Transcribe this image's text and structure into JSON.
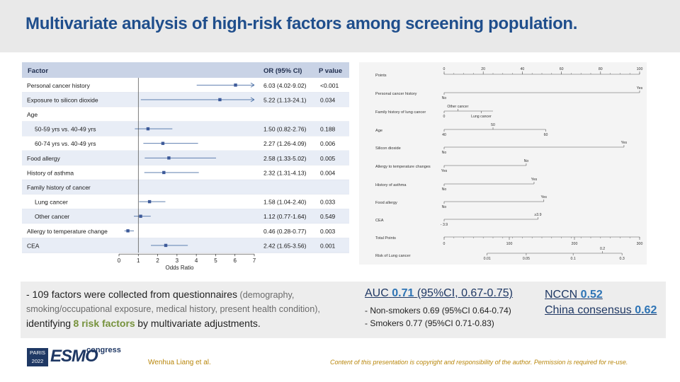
{
  "title": "Multivariate analysis of high-risk factors among screening population.",
  "colors": {
    "title": "#1f4e8c",
    "accent_green": "#76923c",
    "accent_blue": "#2e74b5",
    "footer_gold": "#b8860b",
    "ci_line": "#4a6fa5"
  },
  "chart_data": [
    {
      "type": "forest",
      "title": "",
      "xlabel": "Odds Ratio",
      "xlim": [
        0,
        7
      ],
      "xticks": [
        "0",
        "1",
        "2",
        "3",
        "4",
        "5",
        "6",
        "7"
      ],
      "reference_line": 1,
      "columns": {
        "factor": "Factor",
        "or": "OR (95% CI)",
        "p": "P value"
      },
      "rows": [
        {
          "label": "Personal cancer history",
          "or": 6.03,
          "lo": 4.02,
          "hi": 9.02,
          "or_text": "6.03 (4.02-9.02)",
          "p": "<0.001",
          "indent": false,
          "arrow": true
        },
        {
          "label": "Exposure to silicon dioxide",
          "or": 5.22,
          "lo": 1.13,
          "hi": 24.1,
          "or_text": "5.22 (1.13-24.1)",
          "p": "0.034",
          "indent": false,
          "arrow": true
        },
        {
          "label": "Age",
          "header": true
        },
        {
          "label": "50-59 yrs vs. 40-49 yrs",
          "or": 1.5,
          "lo": 0.82,
          "hi": 2.76,
          "or_text": "1.50 (0.82-2.76)",
          "p": "0.188",
          "indent": true
        },
        {
          "label": "60-74 yrs vs. 40-49 yrs",
          "or": 2.27,
          "lo": 1.26,
          "hi": 4.09,
          "or_text": "2.27 (1.26-4.09)",
          "p": "0.006",
          "indent": true
        },
        {
          "label": "Food allergy",
          "or": 2.58,
          "lo": 1.33,
          "hi": 5.02,
          "or_text": "2.58 (1.33-5.02)",
          "p": "0.005",
          "indent": false
        },
        {
          "label": "History of asthma",
          "or": 2.32,
          "lo": 1.31,
          "hi": 4.13,
          "or_text": "2.32 (1.31-4.13)",
          "p": "0.004",
          "indent": false
        },
        {
          "label": "Family history of cancer",
          "header": true
        },
        {
          "label": "Lung cancer",
          "or": 1.58,
          "lo": 1.04,
          "hi": 2.4,
          "or_text": "1.58 (1.04-2.40)",
          "p": "0.033",
          "indent": true
        },
        {
          "label": "Other cancer",
          "or": 1.12,
          "lo": 0.77,
          "hi": 1.64,
          "or_text": "1.12 (0.77-1.64)",
          "p": "0.549",
          "indent": true
        },
        {
          "label": "Allergy to temperature change",
          "or": 0.46,
          "lo": 0.28,
          "hi": 0.77,
          "or_text": "0.46 (0.28-0.77)",
          "p": "0.003",
          "indent": false
        },
        {
          "label": "CEA",
          "or": 2.42,
          "lo": 1.65,
          "hi": 3.56,
          "or_text": "2.42 (1.65-3.56)",
          "p": "0.001",
          "indent": false
        }
      ]
    },
    {
      "type": "nomogram",
      "title": "",
      "scales": [
        {
          "label": "Points",
          "kind": "ticks",
          "min": 0,
          "max": 100,
          "ticks": [
            {
              "v": 0,
              "t": "0"
            },
            {
              "v": 20,
              "t": "20"
            },
            {
              "v": 40,
              "t": "40"
            },
            {
              "v": 60,
              "t": "60"
            },
            {
              "v": 80,
              "t": "80"
            },
            {
              "v": 100,
              "t": "100"
            }
          ]
        },
        {
          "label": "Personal cancer history",
          "kind": "bar",
          "from": 0,
          "to": 100,
          "marks": [
            {
              "v": 0,
              "t": "No",
              "side": "below"
            },
            {
              "v": 100,
              "t": "Yes",
              "side": "above"
            }
          ]
        },
        {
          "label": "Family history of lung cancer",
          "kind": "bar",
          "from": 0,
          "to": 25,
          "marks": [
            {
              "v": 0,
              "t": "0",
              "side": "below"
            },
            {
              "v": 7,
              "t": "Other cancer",
              "side": "above"
            },
            {
              "v": 19,
              "t": "Lung cancer",
              "side": "below"
            }
          ]
        },
        {
          "label": "Age",
          "kind": "bar",
          "from": 0,
          "to": 52,
          "marks": [
            {
              "v": 0,
              "t": "40",
              "side": "below"
            },
            {
              "v": 25,
              "t": "50",
              "side": "above"
            },
            {
              "v": 52,
              "t": "60",
              "side": "below"
            }
          ]
        },
        {
          "label": "Silicon dioxide",
          "kind": "bar",
          "from": 0,
          "to": 92,
          "marks": [
            {
              "v": 0,
              "t": "No",
              "side": "below"
            },
            {
              "v": 92,
              "t": "Yes",
              "side": "above"
            }
          ]
        },
        {
          "label": "Allergy to temperature changes",
          "kind": "bar",
          "from": 0,
          "to": 42,
          "marks": [
            {
              "v": 0,
              "t": "Yes",
              "side": "below"
            },
            {
              "v": 42,
              "t": "No",
              "side": "above"
            }
          ]
        },
        {
          "label": "History of asthma",
          "kind": "bar",
          "from": 0,
          "to": 46,
          "marks": [
            {
              "v": 0,
              "t": "No",
              "side": "below"
            },
            {
              "v": 46,
              "t": "Yes",
              "side": "above"
            }
          ]
        },
        {
          "label": "Food allergy",
          "kind": "bar",
          "from": 0,
          "to": 51,
          "marks": [
            {
              "v": 0,
              "t": "No",
              "side": "below"
            },
            {
              "v": 51,
              "t": "Yes",
              "side": "above"
            }
          ]
        },
        {
          "label": "CEA",
          "kind": "bar",
          "from": 0,
          "to": 48,
          "marks": [
            {
              "v": 0,
              "t": "- 3.9",
              "side": "below"
            },
            {
              "v": 48,
              "t": "≥3.9",
              "side": "above"
            }
          ]
        },
        {
          "label": "Total Points",
          "kind": "ticks",
          "min": 0,
          "max": 300,
          "ticks": [
            {
              "v": 0,
              "t": "0"
            },
            {
              "v": 100,
              "t": "100"
            },
            {
              "v": 200,
              "t": "200"
            },
            {
              "v": 300,
              "t": "300"
            }
          ]
        },
        {
          "label": "Risk of Lung cancer",
          "kind": "risk",
          "from": 22,
          "to": 91,
          "marks": [
            {
              "v": 22,
              "t": "0.01",
              "side": "below"
            },
            {
              "v": 42,
              "t": "0.05",
              "side": "below"
            },
            {
              "v": 66,
              "t": "0.1",
              "side": "below"
            },
            {
              "v": 81,
              "t": "0.2",
              "side": "above"
            },
            {
              "v": 91,
              "t": "0.3",
              "side": "below"
            }
          ]
        }
      ]
    }
  ],
  "summary": {
    "lead": "- 109 factors were collected from questionnaires",
    "detail": "(demography, smoking/occupational exposure, medical history, present health condition),",
    "identifying": "identifying",
    "highlight": "8 risk factors",
    "tail": "by multivariate adjustments."
  },
  "auc": {
    "label": "AUC",
    "value": "0.71",
    "ci": "(95%CI, 0.67-0.75)",
    "non_smokers": "- Non-smokers 0.69 (95%CI 0.64-0.74)",
    "smokers": "- Smokers 0.77 (95%CI 0.71-0.83)"
  },
  "guidelines": {
    "nccn_label": "NCCN",
    "nccn_value": "0.52",
    "china_label": "China consensus",
    "china_value": "0.62"
  },
  "footer": {
    "logo_year": "PARIS 2022",
    "logo_brand": "ESMO",
    "logo_congress": "congress",
    "author": "Wenhua Liang et al.",
    "copyright": "Content of this presentation  is copyright and responsibility  of the author.  Permission is required  for re-use."
  }
}
